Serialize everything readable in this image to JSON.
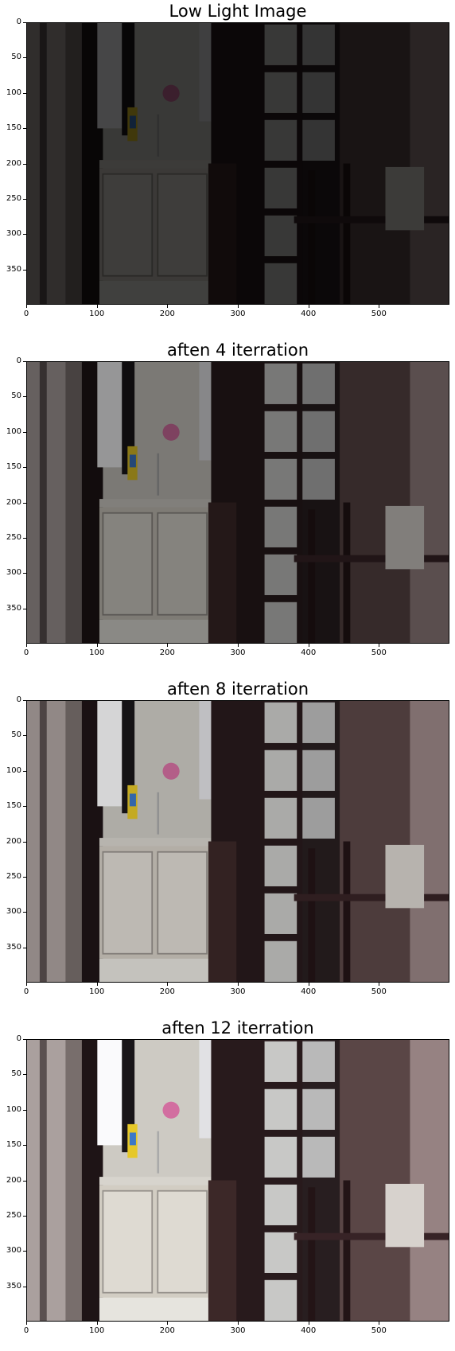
{
  "panels": [
    {
      "title": "Low Light Image",
      "brightness": 0.28
    },
    {
      "title": "aften 4 iterration",
      "brightness": 0.6
    },
    {
      "title": "aften 8 iterration",
      "brightness": 0.85
    },
    {
      "title": "aften 12 iterration",
      "brightness": 1.0
    }
  ],
  "axes": {
    "x_ticks": [
      "0",
      "100",
      "200",
      "300",
      "400",
      "500"
    ],
    "y_ticks": [
      "0",
      "50",
      "100",
      "150",
      "200",
      "250",
      "300",
      "350"
    ],
    "x_values": [
      0,
      100,
      200,
      300,
      400,
      500
    ],
    "y_values": [
      0,
      50,
      100,
      150,
      200,
      250,
      300,
      350
    ],
    "x_range": [
      0,
      600
    ],
    "y_range": [
      0,
      400
    ]
  },
  "scene": "kitchen doorway photo"
}
